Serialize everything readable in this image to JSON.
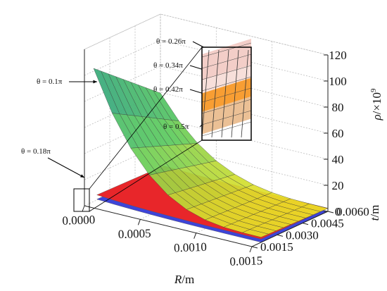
{
  "chart_data": {
    "type": "surface3d",
    "x_axis": {
      "label_var": "R",
      "label_unit": "/m",
      "ticks": [
        "0.0000",
        "0.0005",
        "0.0010",
        "0.0015"
      ],
      "range": [
        0,
        0.0015
      ]
    },
    "y_axis": {
      "label_var": "t",
      "label_unit": "/m",
      "ticks": [
        "0.0015",
        "0.0030",
        "0.0045",
        "0.0060"
      ],
      "range": [
        0.0015,
        0.006
      ]
    },
    "z_axis": {
      "label_var": "ρ",
      "label_unit": "/×10",
      "label_exp": "9",
      "ticks": [
        "0",
        "20",
        "40",
        "60",
        "80",
        "100",
        "120"
      ],
      "range": [
        0,
        120
      ]
    },
    "series": [
      {
        "name": "θ = 0.1π",
        "peak": 108
      },
      {
        "name": "θ = 0.18π",
        "peak": 17
      },
      {
        "name": "θ = 0.26π",
        "peak": 8
      },
      {
        "name": "θ = 0.34π",
        "peak": 5
      },
      {
        "name": "θ = 0.42π",
        "peak": 3.5
      },
      {
        "name": "θ = 0.5π",
        "peak": 2.5
      }
    ],
    "colors": {
      "high": "#1b8f8f",
      "mid": "#5ccb5c",
      "low": "#f2e322",
      "red": "#e8262a",
      "blue": "#3d44d8",
      "orange": "#f7941d",
      "pink": "#f2c9c2",
      "tan": "#e9b98a",
      "inset_frame": "#000000"
    }
  }
}
